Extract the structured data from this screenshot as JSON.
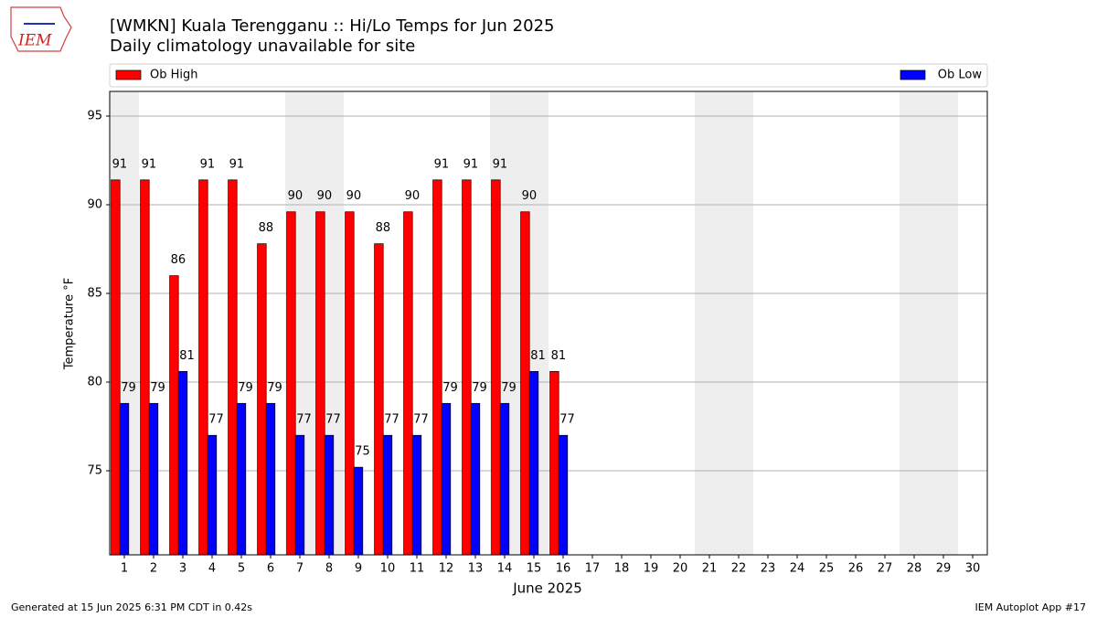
{
  "logo": "IEM",
  "footer": {
    "left": "Generated at 15 Jun 2025 6:31 PM CDT in 0.42s",
    "right": "IEM Autoplot App #17"
  },
  "chart_data": {
    "type": "bar",
    "title": "[WMKN] Kuala Terengganu :: Hi/Lo Temps for Jun 2025",
    "subtitle": "Daily climatology unavailable for site",
    "x_label": "June 2025",
    "y_label": "Temperature °F",
    "categories": [
      "1",
      "2",
      "3",
      "4",
      "5",
      "6",
      "7",
      "8",
      "9",
      "10",
      "11",
      "12",
      "13",
      "14",
      "15",
      "16",
      "17",
      "18",
      "19",
      "20",
      "21",
      "22",
      "23",
      "24",
      "25",
      "26",
      "27",
      "28",
      "29",
      "30"
    ],
    "shaded_days": [
      1,
      7,
      8,
      14,
      15,
      21,
      22,
      28,
      29
    ],
    "shade_color": "#eeeeee",
    "series": [
      {
        "name": "Ob High",
        "color": "#ff0000",
        "values": [
          91.4,
          91.4,
          86.0,
          91.4,
          91.4,
          87.8,
          89.6,
          89.6,
          89.6,
          87.8,
          89.6,
          91.4,
          91.4,
          91.4,
          89.6,
          80.6,
          null,
          null,
          null,
          null,
          null,
          null,
          null,
          null,
          null,
          null,
          null,
          null,
          null,
          null
        ],
        "value_labels": [
          "91",
          "91",
          "86",
          "91",
          "91",
          "88",
          "90",
          "90",
          "90",
          "88",
          "90",
          "91",
          "91",
          "91",
          "90",
          "81",
          null,
          null,
          null,
          null,
          null,
          null,
          null,
          null,
          null,
          null,
          null,
          null,
          null,
          null
        ]
      },
      {
        "name": "Ob Low",
        "color": "#0000ff",
        "values": [
          78.8,
          78.8,
          80.6,
          77.0,
          78.8,
          78.8,
          77.0,
          77.0,
          75.2,
          77.0,
          77.0,
          78.8,
          78.8,
          78.8,
          80.6,
          77.0,
          null,
          null,
          null,
          null,
          null,
          null,
          null,
          null,
          null,
          null,
          null,
          null,
          null,
          null
        ],
        "value_labels": [
          "79",
          "79",
          "81",
          "77",
          "79",
          "79",
          "77",
          "77",
          "75",
          "77",
          "77",
          "79",
          "79",
          "79",
          "81",
          "77",
          null,
          null,
          null,
          null,
          null,
          null,
          null,
          null,
          null,
          null,
          null,
          null,
          null,
          null
        ]
      }
    ],
    "ylim": [
      70.26,
      96.39
    ],
    "yticks": [
      75,
      80,
      85,
      90,
      95
    ],
    "grid": true,
    "legend": "top"
  }
}
